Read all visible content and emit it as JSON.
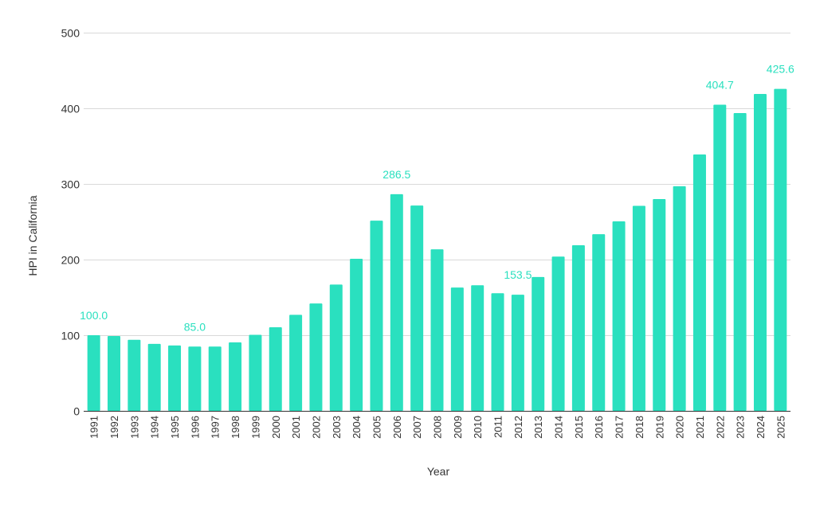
{
  "chart_data": {
    "type": "bar",
    "title": "",
    "xlabel": "Year",
    "ylabel": "HPI in California",
    "ylim": [
      0,
      500
    ],
    "yticks": [
      0,
      100,
      200,
      300,
      400,
      500
    ],
    "grid": true,
    "bar_color": "#2ae0bf",
    "label_color": "#2ae0bf",
    "categories": [
      "1991",
      "1992",
      "1993",
      "1994",
      "1995",
      "1996",
      "1997",
      "1998",
      "1999",
      "2000",
      "2001",
      "2002",
      "2003",
      "2004",
      "2005",
      "2006",
      "2007",
      "2008",
      "2009",
      "2010",
      "2011",
      "2012",
      "2013",
      "2014",
      "2015",
      "2016",
      "2017",
      "2018",
      "2019",
      "2020",
      "2021",
      "2022",
      "2023",
      "2024",
      "2025"
    ],
    "values": [
      100.0,
      99,
      94,
      88.5,
      86.5,
      85.0,
      85,
      90.5,
      100.5,
      110.5,
      127,
      142,
      167,
      201,
      251.5,
      286.5,
      271.5,
      213.5,
      163,
      166,
      155.5,
      153.5,
      177,
      204,
      219,
      233.5,
      250.5,
      271,
      280,
      297,
      339,
      404.7,
      393.7,
      419,
      425.6
    ],
    "data_labels": [
      {
        "year": "1991",
        "text": "100.0"
      },
      {
        "year": "1996",
        "text": "85.0"
      },
      {
        "year": "2006",
        "text": "286.5"
      },
      {
        "year": "2012",
        "text": "153.5"
      },
      {
        "year": "2022",
        "text": "404.7"
      },
      {
        "year": "2025",
        "text": "425.6"
      }
    ]
  }
}
